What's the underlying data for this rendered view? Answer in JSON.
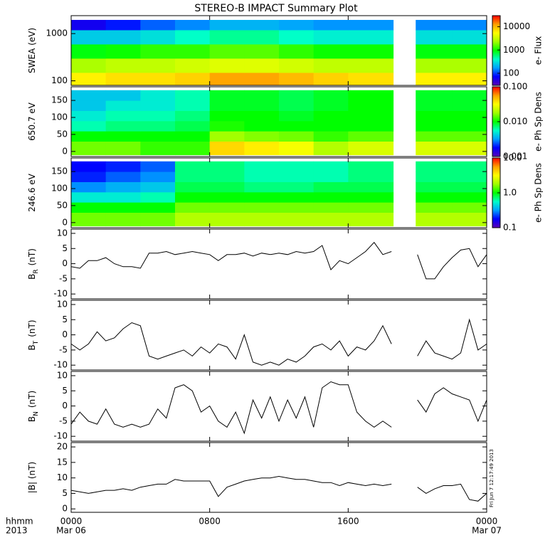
{
  "chart_data": [
    {
      "type": "heatmap",
      "title": "STEREO-B IMPACT Summary Plot",
      "ylabel": "SWEA (eV)",
      "xlim": [
        0,
        24
      ],
      "x_edges": [
        0,
        2,
        4,
        6,
        8,
        10,
        12,
        14,
        16,
        18.6,
        19.9,
        22,
        24
      ],
      "ylim": [
        80,
        2400
      ],
      "ylog": true,
      "y_edges": [
        82,
        150,
        300,
        600,
        1200,
        1950
      ],
      "yticks": [
        100,
        1000
      ],
      "values": [
        [
          6000,
          7000,
          7000,
          8000,
          12000,
          12000,
          10000,
          8000,
          7000,
          null,
          6000,
          6000
        ],
        [
          2500,
          3000,
          3000,
          3500,
          4000,
          4000,
          3500,
          3000,
          3000,
          null,
          2500,
          2500
        ],
        [
          900,
          1000,
          1200,
          1200,
          1500,
          1500,
          1200,
          1000,
          1000,
          null,
          900,
          900
        ],
        [
          250,
          250,
          300,
          400,
          500,
          500,
          400,
          350,
          350,
          null,
          300,
          300
        ],
        [
          60,
          80,
          120,
          150,
          200,
          200,
          180,
          160,
          160,
          null,
          150,
          150
        ]
      ],
      "colorbar": {
        "label": "e- Flux",
        "zlim": [
          30,
          30000
        ],
        "zlog": true,
        "zticks": [
          100,
          1000,
          10000
        ]
      },
      "colormap": [
        "#5a00b4",
        "#0000ff",
        "#00a0ff",
        "#00ffc8",
        "#00ff00",
        "#a0ff00",
        "#ffff00",
        "#ffa000",
        "#ff0000"
      ]
    },
    {
      "type": "heatmap",
      "ylabel": "650.7 eV",
      "xlim": [
        0,
        24
      ],
      "x_edges": [
        0,
        2,
        4,
        6,
        8,
        10,
        12,
        14,
        16,
        18.6,
        19.9,
        22,
        24
      ],
      "ylim": [
        -15,
        190
      ],
      "ylog": false,
      "y_edges": [
        -10,
        30,
        60,
        90,
        120,
        150,
        180
      ],
      "yticks": [
        0,
        50,
        100,
        150
      ],
      "values": [
        [
          0.015,
          0.015,
          0.012,
          0.012,
          0.04,
          0.035,
          0.03,
          0.02,
          0.025,
          null,
          0.025,
          0.025
        ],
        [
          0.01,
          0.01,
          0.01,
          0.01,
          0.018,
          0.016,
          0.015,
          0.012,
          0.014,
          null,
          0.014,
          0.014
        ],
        [
          0.006,
          0.007,
          0.007,
          0.008,
          0.011,
          0.01,
          0.01,
          0.01,
          0.01,
          null,
          0.01,
          0.01
        ],
        [
          0.005,
          0.006,
          0.006,
          0.007,
          0.01,
          0.01,
          0.009,
          0.01,
          0.01,
          null,
          0.01,
          0.01
        ],
        [
          0.004,
          0.005,
          0.005,
          0.006,
          0.009,
          0.009,
          0.008,
          0.009,
          0.01,
          null,
          0.009,
          0.009
        ],
        [
          0.004,
          0.004,
          0.005,
          0.006,
          0.009,
          0.009,
          0.008,
          0.009,
          0.01,
          null,
          0.009,
          0.009
        ]
      ],
      "colorbar": {
        "label": "e- Ph Sp Dens",
        "zlim": [
          0.001,
          0.1
        ],
        "zlog": true,
        "zticks": [
          0.001,
          {
            "value": 0.01,
            "label": "0.010"
          },
          {
            "value": 0.1,
            "label": "0.100"
          }
        ]
      },
      "colormap": [
        "#5a00b4",
        "#0000ff",
        "#00a0ff",
        "#00ffc8",
        "#00ff00",
        "#a0ff00",
        "#ffff00",
        "#ffa000",
        "#ff0000"
      ]
    },
    {
      "type": "heatmap",
      "ylabel": "246.6 eV",
      "xlim": [
        0,
        24
      ],
      "x_edges": [
        0,
        2,
        4,
        6,
        8,
        10,
        12,
        14,
        16,
        18.6,
        19.9,
        22,
        24
      ],
      "ylim": [
        -15,
        190
      ],
      "ylog": false,
      "y_edges": [
        -10,
        30,
        60,
        90,
        120,
        150,
        180
      ],
      "yticks": [
        0,
        50,
        100,
        150
      ],
      "values": [
        [
          1.5,
          1.5,
          1.5,
          2,
          2,
          2,
          2,
          2,
          2,
          null,
          2,
          2
        ],
        [
          1,
          1,
          1,
          1.5,
          1.5,
          1.5,
          1.5,
          1.5,
          1.5,
          null,
          1.5,
          1.5
        ],
        [
          0.5,
          0.5,
          0.6,
          1,
          1,
          1,
          1,
          1,
          1,
          null,
          1,
          1
        ],
        [
          0.3,
          0.35,
          0.4,
          0.8,
          0.8,
          0.7,
          0.7,
          0.8,
          0.8,
          null,
          0.8,
          0.8
        ],
        [
          0.2,
          0.25,
          0.3,
          0.7,
          0.7,
          0.6,
          0.6,
          0.6,
          0.7,
          null,
          0.7,
          0.7
        ],
        [
          0.18,
          0.2,
          0.25,
          0.7,
          0.7,
          0.6,
          0.6,
          0.6,
          0.7,
          null,
          0.7,
          0.7
        ]
      ],
      "colorbar": {
        "label": "e- Ph Sp Dens",
        "zlim": [
          0.1,
          10
        ],
        "zlog": true,
        "zticks": [
          0.1,
          {
            "value": 1,
            "label": "1.0"
          },
          {
            "value": 10,
            "label": "10.0"
          }
        ]
      },
      "colormap": [
        "#5a00b4",
        "#0000ff",
        "#00a0ff",
        "#00ffc8",
        "#00ff00",
        "#a0ff00",
        "#ffff00",
        "#ffa000",
        "#ff0000"
      ]
    },
    {
      "type": "line",
      "ylabel": "B",
      "ylabel_sub": "R",
      "ylabel_unit": "(nT)",
      "color": "#000000",
      "xlim": [
        0,
        24
      ],
      "ylim": [
        -11.6,
        11.4
      ],
      "yticks": [
        -10,
        -5,
        0,
        5,
        10
      ],
      "x": [
        0,
        0.5,
        1,
        1.5,
        2,
        2.5,
        3,
        3.5,
        4,
        4.5,
        5,
        5.5,
        6,
        6.5,
        7,
        7.5,
        8,
        8.5,
        9,
        9.5,
        10,
        10.5,
        11,
        11.5,
        12,
        12.5,
        13,
        13.5,
        14,
        14.5,
        15,
        15.5,
        16,
        16.5,
        17,
        17.5,
        18,
        18.5,
        19.25,
        20,
        20.5,
        21,
        21.5,
        22,
        22.5,
        23,
        23.5,
        24
      ],
      "values": [
        -1,
        -1.5,
        1,
        1,
        2,
        0,
        -1,
        -1,
        -1.5,
        3.5,
        3.5,
        4,
        3,
        3.5,
        4,
        3.5,
        3,
        1,
        3,
        3,
        3.5,
        2.5,
        3.5,
        3,
        3.5,
        3,
        4,
        3.5,
        4,
        6,
        -2,
        1,
        0,
        2,
        4,
        7,
        3,
        4,
        null,
        3,
        -5,
        -5,
        -1,
        2,
        4.5,
        5,
        -1,
        3
      ]
    },
    {
      "type": "line",
      "ylabel": "B",
      "ylabel_sub": "T",
      "ylabel_unit": "(nT)",
      "color": "#000000",
      "xlim": [
        0,
        24
      ],
      "ylim": [
        -11.6,
        11.4
      ],
      "yticks": [
        -10,
        -5,
        0,
        5,
        10
      ],
      "x": [
        0,
        0.5,
        1,
        1.5,
        2,
        2.5,
        3,
        3.5,
        4,
        4.5,
        5,
        5.5,
        6,
        6.5,
        7,
        7.5,
        8,
        8.5,
        9,
        9.5,
        10,
        10.5,
        11,
        11.5,
        12,
        12.5,
        13,
        13.5,
        14,
        14.5,
        15,
        15.5,
        16,
        16.5,
        17,
        17.5,
        18,
        18.5,
        19.25,
        20,
        20.5,
        21,
        21.5,
        22,
        22.5,
        23,
        23.5,
        24
      ],
      "values": [
        -3,
        -5,
        -3,
        1,
        -2,
        -1,
        2,
        4,
        3,
        -7,
        -8,
        -7,
        -6,
        -5,
        -7,
        -4,
        -6,
        -3,
        -4,
        -8,
        0,
        -9,
        -10,
        -9,
        -10,
        -8,
        -9,
        -7,
        -4,
        -3,
        -5,
        -2,
        -7,
        -4,
        -5,
        -2,
        3,
        -3,
        null,
        -7,
        -2,
        -6,
        -7,
        -8,
        -6,
        5,
        -5,
        -3
      ]
    },
    {
      "type": "line",
      "ylabel": "B",
      "ylabel_sub": "N",
      "ylabel_unit": "(nT)",
      "color": "#000000",
      "xlim": [
        0,
        24
      ],
      "ylim": [
        -11.6,
        11.4
      ],
      "yticks": [
        -10,
        -5,
        0,
        5,
        10
      ],
      "x": [
        0,
        0.5,
        1,
        1.5,
        2,
        2.5,
        3,
        3.5,
        4,
        4.5,
        5,
        5.5,
        6,
        6.5,
        7,
        7.5,
        8,
        8.5,
        9,
        9.5,
        10,
        10.5,
        11,
        11.5,
        12,
        12.5,
        13,
        13.5,
        14,
        14.5,
        15,
        15.5,
        16,
        16.5,
        17,
        17.5,
        18,
        18.5,
        19.25,
        20,
        20.5,
        21,
        21.5,
        22,
        22.5,
        23,
        23.5,
        24
      ],
      "values": [
        -6,
        -2,
        -5,
        -6,
        -1,
        -6,
        -7,
        -6,
        -7,
        -6,
        -1,
        -4,
        6,
        7,
        5,
        -2,
        0,
        -5,
        -7,
        -2,
        -9,
        2,
        -4,
        3,
        -5,
        2,
        -4,
        3,
        -7,
        6,
        8,
        7,
        7,
        -2,
        -5,
        -7,
        -5,
        -7,
        null,
        2,
        -2,
        4,
        6,
        4,
        3,
        2,
        -5,
        2
      ]
    },
    {
      "type": "line",
      "ylabel": "|B| (nT)",
      "color": "#000000",
      "xlim": [
        0,
        24
      ],
      "ylim": [
        -1.1,
        21.4
      ],
      "yticks": [
        0,
        5,
        10,
        15,
        20
      ],
      "x": [
        0,
        0.5,
        1,
        1.5,
        2,
        2.5,
        3,
        3.5,
        4,
        4.5,
        5,
        5.5,
        6,
        6.5,
        7,
        7.5,
        8,
        8.5,
        9,
        9.5,
        10,
        10.5,
        11,
        11.5,
        12,
        12.5,
        13,
        13.5,
        14,
        14.5,
        15,
        15.5,
        16,
        16.5,
        17,
        17.5,
        18,
        18.5,
        19.25,
        20,
        20.5,
        21,
        21.5,
        22,
        22.5,
        23,
        23.5,
        24
      ],
      "values": [
        6,
        5.5,
        5,
        5.5,
        6,
        6,
        6.5,
        6,
        7,
        7.5,
        8,
        8,
        9.5,
        9,
        9,
        9,
        9,
        4,
        7,
        8,
        9,
        9.5,
        10,
        10,
        10.5,
        10,
        9.5,
        9.5,
        9,
        8.5,
        8.5,
        7.5,
        8.5,
        8,
        7.5,
        8,
        7.5,
        8,
        null,
        7,
        5,
        6.5,
        7.5,
        7.5,
        8,
        3,
        2.5,
        5
      ],
      "xticks": [
        {
          "value": 0,
          "label": "0000"
        },
        {
          "value": 8,
          "label": "0800"
        },
        {
          "value": 16,
          "label": "1600"
        },
        {
          "value": 24,
          "label": "0000"
        }
      ],
      "xtick_dates": [
        "Mar 06",
        null,
        null,
        "Mar 07"
      ],
      "xlabel": "hhmm",
      "xlabel_year": "2013",
      "timestamp": "Fri Jun  7 12:17:49 2013"
    }
  ]
}
